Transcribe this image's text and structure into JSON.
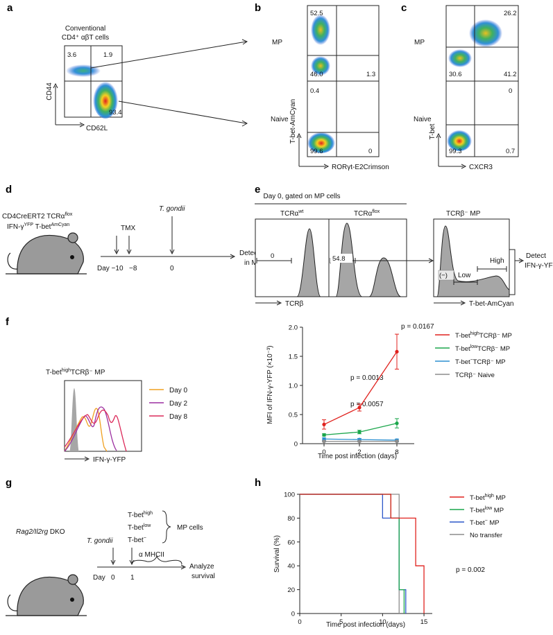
{
  "panel_letters": [
    "a",
    "b",
    "c",
    "d",
    "e",
    "f",
    "g",
    "h"
  ],
  "colors": {
    "red": "#e0211d",
    "green": "#1aa64b",
    "blue": "#2b57c9",
    "gray": "#8c8c8c",
    "orange": "#f0a020",
    "purple": "#9b2fa0",
    "crimson": "#dc2a5a"
  },
  "panel_a": {
    "title_line1": "Conventional",
    "title_line2": "CD4⁺ αβT cells",
    "xlabel": "CD62L",
    "ylabel": "CD44",
    "quadrants": {
      "ul": "3.6",
      "ur": "1.9",
      "lr": "93.4"
    }
  },
  "panel_b": {
    "row1": "MP",
    "row2": "Naive",
    "xlabel": "RORγt-E2Crimson",
    "ylabel": "T-bet-AmCyan",
    "top": {
      "ul": "52.5",
      "ll": "46.0",
      "lr": "1.3"
    },
    "bottom": {
      "ul": "0.4",
      "ll": "99.6",
      "lr": "0"
    }
  },
  "panel_c": {
    "row1": "MP",
    "row2": "Naive",
    "xlabel": "CXCR3",
    "ylabel": "T-bet",
    "top": {
      "ur": "26.2",
      "ll": "30.6",
      "lr": "41.2"
    },
    "bottom": {
      "ur": "0",
      "ll": "99.3",
      "lr": "0.7"
    }
  },
  "panel_d": {
    "mouse_line1": "CD4CreERT2 TCRα",
    "mouse_sup1": "flox",
    "mouse_line2a": "IFN-γ",
    "mouse_sup2a": "YFP",
    "mouse_line2b": " T-bet",
    "mouse_sup2b": "AmCyan",
    "tmx": "TMX",
    "pathogen": "T. gondii",
    "day_label": "Day −10",
    "d8": "−8",
    "d0": "0",
    "result1": "Detect IFN-γ",
    "result2": "in MP cells"
  },
  "panel_e": {
    "header": "Day 0, gated on MP cells",
    "h1_title": "TCRα",
    "h1_sup": "wt",
    "h2_title": "TCRα",
    "h2_sup": "flox",
    "h3_title": "TCRβ⁻ MP",
    "h1_gate": "0",
    "h2_gate": "54.8",
    "xlabel1": "TCRβ",
    "xlabel2": "T-bet-AmCyan",
    "neg": "(−)",
    "low": "Low",
    "high": "High",
    "detect1": "Detect",
    "detect2": "IFN-γ-YFP"
  },
  "panel_f_hist": {
    "title_a": "T-bet",
    "title_sup": "high",
    "title_b": "TCRβ⁻ MP",
    "legend": [
      "Day 0",
      "Day 2",
      "Day 8"
    ],
    "xlabel": "IFN-γ-YFP"
  },
  "chart_data": [
    {
      "type": "line",
      "ylabel": "MFI of IFN-γ-YFP (×10⁻³)",
      "xlabel": "Time post infection (days)",
      "x": [
        0,
        2,
        8
      ],
      "x_ticks": [
        "0",
        "2",
        "8"
      ],
      "ylim": [
        0,
        2.0
      ],
      "y_ticks": [
        "0",
        "0.5",
        "1.0",
        "1.5",
        "2.0"
      ],
      "series": [
        {
          "name": "T-bet high TCRβ⁻ MP",
          "label_a": "T-bet",
          "label_sup": "high",
          "label_b": "TCRβ⁻ MP",
          "color": "#e0211d",
          "values": [
            0.33,
            0.62,
            1.58
          ],
          "err": [
            0.08,
            0.06,
            0.3
          ]
        },
        {
          "name": "T-bet low TCRβ⁻ MP",
          "label_a": "T-bet",
          "label_sup": "low",
          "label_b": "TCRβ⁻ MP",
          "color": "#1aa64b",
          "values": [
            0.15,
            0.2,
            0.35
          ],
          "err": [
            0.02,
            0.03,
            0.08
          ]
        },
        {
          "name": "T-bet⁻ TCRβ⁻ MP",
          "label_a": "T-bet",
          "label_sup": "−",
          "label_b": "TCRβ⁻ MP",
          "color": "#2b8fd0",
          "values": [
            0.08,
            0.07,
            0.06
          ],
          "err": [
            0.02,
            0.02,
            0.02
          ]
        },
        {
          "name": "TCRβ⁻ Naive",
          "label_a": "TCRβ⁻ Naive",
          "label_sup": "",
          "label_b": "",
          "color": "#8c8c8c",
          "values": [
            0.04,
            0.04,
            0.04
          ],
          "err": [
            0.01,
            0.01,
            0.01
          ]
        }
      ],
      "annotations": [
        "p = 0.0167",
        "p = 0.0013",
        "p = 0.0057"
      ]
    },
    {
      "type": "line",
      "ylabel": "Survival (%)",
      "xlabel": "Time post infection (days)",
      "xlim": [
        0,
        16
      ],
      "ylim": [
        0,
        100
      ],
      "x_ticks": [
        "0",
        "5",
        "10",
        "15"
      ],
      "y_ticks": [
        "0",
        "20",
        "40",
        "60",
        "80",
        "100"
      ],
      "series": [
        {
          "name": "T-bet high MP",
          "label_a": "T-bet",
          "label_sup": "high",
          "label_b": " MP",
          "color": "#e0211d",
          "steps": [
            [
              0,
              100
            ],
            [
              11,
              100
            ],
            [
              11,
              80
            ],
            [
              14,
              80
            ],
            [
              14,
              40
            ],
            [
              15,
              40
            ],
            [
              15,
              0
            ]
          ]
        },
        {
          "name": "T-bet low MP",
          "label_a": "T-bet",
          "label_sup": "low",
          "label_b": " MP",
          "color": "#1aa64b",
          "steps": [
            [
              0,
              100
            ],
            [
              11,
              100
            ],
            [
              11,
              80
            ],
            [
              12,
              80
            ],
            [
              12,
              20
            ],
            [
              12.6,
              20
            ],
            [
              12.6,
              0
            ]
          ]
        },
        {
          "name": "T-bet⁻ MP",
          "label_a": "T-bet",
          "label_sup": "−",
          "label_b": " MP",
          "color": "#2b57c9",
          "steps": [
            [
              0,
              100
            ],
            [
              10,
              100
            ],
            [
              10,
              80
            ],
            [
              12,
              80
            ],
            [
              12,
              20
            ],
            [
              12.8,
              20
            ],
            [
              12.8,
              0
            ]
          ]
        },
        {
          "name": "No transfer",
          "label_a": "No transfer",
          "label_sup": "",
          "label_b": "",
          "color": "#8c8c8c",
          "steps": [
            [
              0,
              100
            ],
            [
              12,
              100
            ],
            [
              12,
              0
            ]
          ]
        }
      ],
      "annotation": "p = 0.002"
    }
  ],
  "panel_g": {
    "strain": "Rag2/Il2rg",
    "strain_suffix": " DKO",
    "pathogen": "T. gondii",
    "groups": [
      {
        "a": "T-bet",
        "sup": "high",
        "color": "#e0211d"
      },
      {
        "a": "T-bet",
        "sup": "low",
        "color": "#1aa64b"
      },
      {
        "a": "T-bet",
        "sup": "−",
        "color": "#2b57c9"
      }
    ],
    "mp_cells": "MP cells",
    "antibody": "α MHCII",
    "day": "Day",
    "d0": "0",
    "d1": "1",
    "result1": "Analyze",
    "result2": "survival"
  }
}
